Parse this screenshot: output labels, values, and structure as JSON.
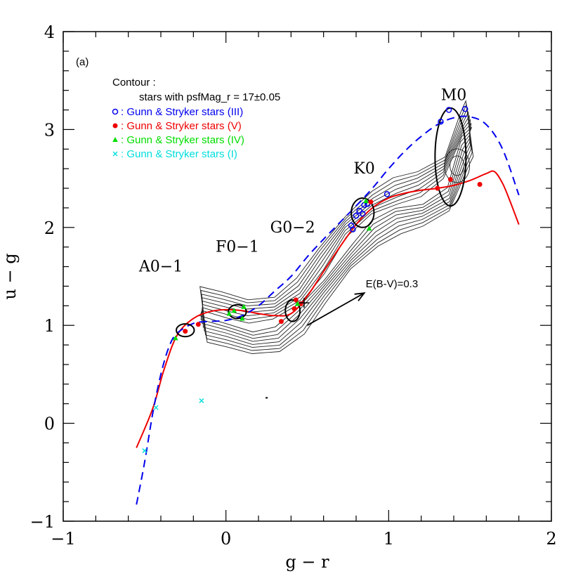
{
  "chart_data": {
    "type": "scatter",
    "panel_label": "(a)",
    "xlabel": "g − r",
    "ylabel": "u − g",
    "xlim": [
      -1,
      2
    ],
    "ylim": [
      -1,
      4
    ],
    "x_ticks": [
      -1,
      0,
      1,
      2
    ],
    "y_ticks": [
      -1,
      0,
      1,
      2,
      3,
      4
    ],
    "x_tick_labels": [
      "−1",
      "0",
      "1",
      "2"
    ],
    "y_tick_labels": [
      "−1",
      "0",
      "1",
      "2",
      "3",
      "4"
    ],
    "grid": false,
    "legend": {
      "title": "Contour :",
      "subtitle": "stars with psfMag_r = 17±0.05",
      "position": "top-left",
      "entries": [
        {
          "marker": "open-circle",
          "color": "#0000ee",
          "label": ": Gunn & Stryker stars (III)"
        },
        {
          "marker": "filled-circle",
          "color": "#ee0000",
          "label": ": Gunn & Stryker stars (V)"
        },
        {
          "marker": "triangle",
          "color": "#00dd00",
          "label": ": Gunn & Stryker stars (IV)"
        },
        {
          "marker": "cross",
          "color": "#00dddd",
          "label": ": Gunn & Stryker stars (I)"
        }
      ]
    },
    "series": [
      {
        "name": ": Gunn & Stryker stars (III)",
        "marker": "open-circle",
        "color": "#0000ee",
        "points": [
          [
            0.77,
            2.02
          ],
          [
            0.78,
            1.98
          ],
          [
            0.8,
            2.12
          ],
          [
            0.82,
            2.17
          ],
          [
            0.84,
            2.14
          ],
          [
            0.85,
            2.23
          ],
          [
            0.87,
            2.24
          ],
          [
            0.99,
            2.34
          ],
          [
            1.37,
            3.2
          ],
          [
            1.47,
            3.21
          ],
          [
            1.32,
            3.08
          ]
        ]
      },
      {
        "name": ": Gunn & Stryker stars (V)",
        "marker": "filled-circle",
        "color": "#ee0000",
        "points": [
          [
            -0.25,
            0.94
          ],
          [
            -0.17,
            1.01
          ],
          [
            0.34,
            1.04
          ],
          [
            0.42,
            1.17
          ],
          [
            0.43,
            1.26
          ],
          [
            0.46,
            1.22
          ],
          [
            0.89,
            2.26
          ],
          [
            1.3,
            2.4
          ],
          [
            1.38,
            2.49
          ],
          [
            1.56,
            2.44
          ]
        ]
      },
      {
        "name": ": Gunn & Stryker stars (IV)",
        "marker": "triangle",
        "color": "#00dd00",
        "points": [
          [
            -0.31,
            0.87
          ],
          [
            0.02,
            1.12
          ],
          [
            0.05,
            1.15
          ],
          [
            0.1,
            1.07
          ],
          [
            0.11,
            1.19
          ],
          [
            0.44,
            1.22
          ],
          [
            0.86,
            2.27
          ],
          [
            0.88,
            1.99
          ]
        ]
      },
      {
        "name": ": Gunn & Stryker stars (I)",
        "marker": "cross",
        "color": "#00dddd",
        "points": [
          [
            -0.43,
            0.16
          ],
          [
            -0.5,
            -0.28
          ],
          [
            -0.15,
            0.23
          ]
        ]
      }
    ],
    "curves": [
      {
        "style": "solid",
        "color": "#ee0000",
        "points": [
          [
            -0.55,
            -0.25
          ],
          [
            -0.45,
            0.15
          ],
          [
            -0.38,
            0.55
          ],
          [
            -0.3,
            0.9
          ],
          [
            -0.2,
            1.07
          ],
          [
            -0.1,
            1.14
          ],
          [
            0.0,
            1.16
          ],
          [
            0.1,
            1.15
          ],
          [
            0.2,
            1.12
          ],
          [
            0.3,
            1.1
          ],
          [
            0.4,
            1.12
          ],
          [
            0.5,
            1.3
          ],
          [
            0.6,
            1.55
          ],
          [
            0.7,
            1.8
          ],
          [
            0.8,
            2.03
          ],
          [
            0.9,
            2.2
          ],
          [
            1.0,
            2.3
          ],
          [
            1.1,
            2.35
          ],
          [
            1.2,
            2.38
          ],
          [
            1.3,
            2.4
          ],
          [
            1.4,
            2.43
          ],
          [
            1.5,
            2.48
          ],
          [
            1.6,
            2.55
          ],
          [
            1.65,
            2.57
          ],
          [
            1.7,
            2.45
          ],
          [
            1.75,
            2.25
          ],
          [
            1.8,
            2.03
          ]
        ]
      },
      {
        "style": "dashed",
        "color": "#0000ee",
        "points": [
          [
            -0.55,
            -0.83
          ],
          [
            -0.5,
            -0.4
          ],
          [
            -0.45,
            0.1
          ],
          [
            -0.4,
            0.5
          ],
          [
            -0.35,
            0.78
          ],
          [
            -0.3,
            0.92
          ],
          [
            -0.2,
            1.02
          ],
          [
            -0.1,
            1.04
          ],
          [
            0.0,
            1.05
          ],
          [
            0.1,
            1.1
          ],
          [
            0.2,
            1.2
          ],
          [
            0.3,
            1.35
          ],
          [
            0.4,
            1.5
          ],
          [
            0.5,
            1.7
          ],
          [
            0.6,
            1.88
          ],
          [
            0.7,
            2.05
          ],
          [
            0.8,
            2.22
          ],
          [
            0.9,
            2.4
          ],
          [
            1.0,
            2.6
          ],
          [
            1.1,
            2.78
          ],
          [
            1.2,
            2.93
          ],
          [
            1.3,
            3.05
          ],
          [
            1.4,
            3.12
          ],
          [
            1.5,
            3.13
          ],
          [
            1.6,
            3.05
          ],
          [
            1.7,
            2.8
          ],
          [
            1.8,
            2.33
          ]
        ]
      }
    ],
    "ellipses": [
      {
        "cx": -0.25,
        "cy": 0.95,
        "rx": 0.055,
        "ry": 0.065
      },
      {
        "cx": 0.07,
        "cy": 1.14,
        "rx": 0.055,
        "ry": 0.07
      },
      {
        "cx": 0.41,
        "cy": 1.15,
        "rx": 0.045,
        "ry": 0.11
      },
      {
        "cx": 0.84,
        "cy": 2.15,
        "rx": 0.07,
        "ry": 0.15
      },
      {
        "cx": 1.38,
        "cy": 2.72,
        "rx": 0.095,
        "ry": 0.5
      }
    ],
    "annotations": [
      {
        "text": "A0−1",
        "x": -0.4,
        "y": 1.55
      },
      {
        "text": "F0−1",
        "x": 0.07,
        "y": 1.75
      },
      {
        "text": "G0−2",
        "x": 0.41,
        "y": 1.95
      },
      {
        "text": "K0",
        "x": 0.85,
        "y": 2.55
      },
      {
        "text": "M0",
        "x": 1.4,
        "y": 3.3
      }
    ],
    "reddening_vector": {
      "label": "E(B-V)=0.3",
      "from": [
        0.5,
        1.0
      ],
      "to": [
        0.85,
        1.33
      ]
    },
    "plus_marker": [
      0.48,
      1.23
    ],
    "small_dot": [
      0.25,
      0.26
    ],
    "contour_levels": 8
  }
}
